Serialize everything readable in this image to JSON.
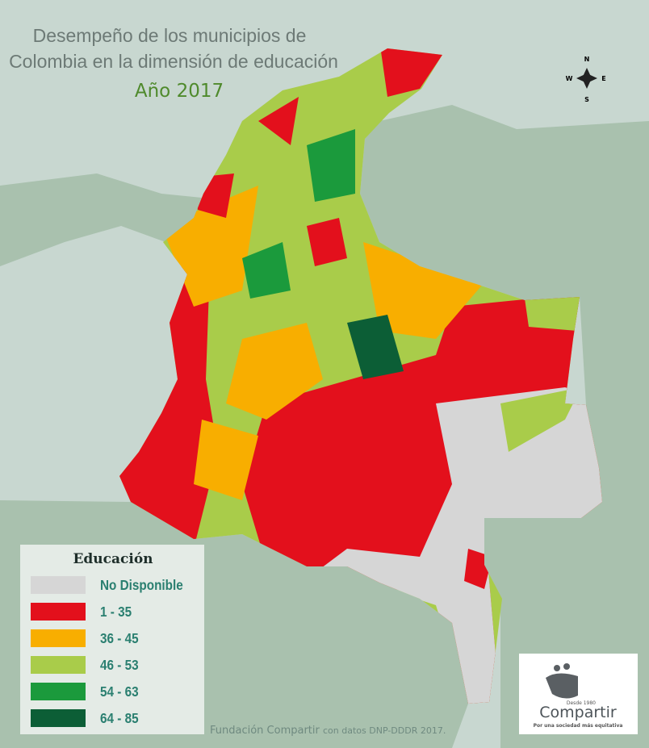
{
  "title": [
    "Desempeño de los municipios de",
    "Colombia en la dimensión de educación"
  ],
  "year": "Año 2017",
  "compass": {
    "n": "N",
    "s": "S",
    "e": "E",
    "w": "W"
  },
  "legend": {
    "title": "Educación",
    "items": [
      {
        "label": "No Disponible",
        "color": "#d6d6d6"
      },
      {
        "label": "1 - 35",
        "color": "#e3101c"
      },
      {
        "label": "36 - 45",
        "color": "#f8ae00"
      },
      {
        "label": "46 - 53",
        "color": "#a9cc4a"
      },
      {
        "label": "54 - 63",
        "color": "#1b9a3c"
      },
      {
        "label": "64 - 85",
        "color": "#0c5e36"
      }
    ]
  },
  "source": {
    "org": "Fundación Compartir",
    "text": "con datos DNP-DDDR 2017."
  },
  "logo": {
    "since": "Desde 1980",
    "name": "Compartir",
    "tagline": "Por una sociedad más equitativa"
  }
}
